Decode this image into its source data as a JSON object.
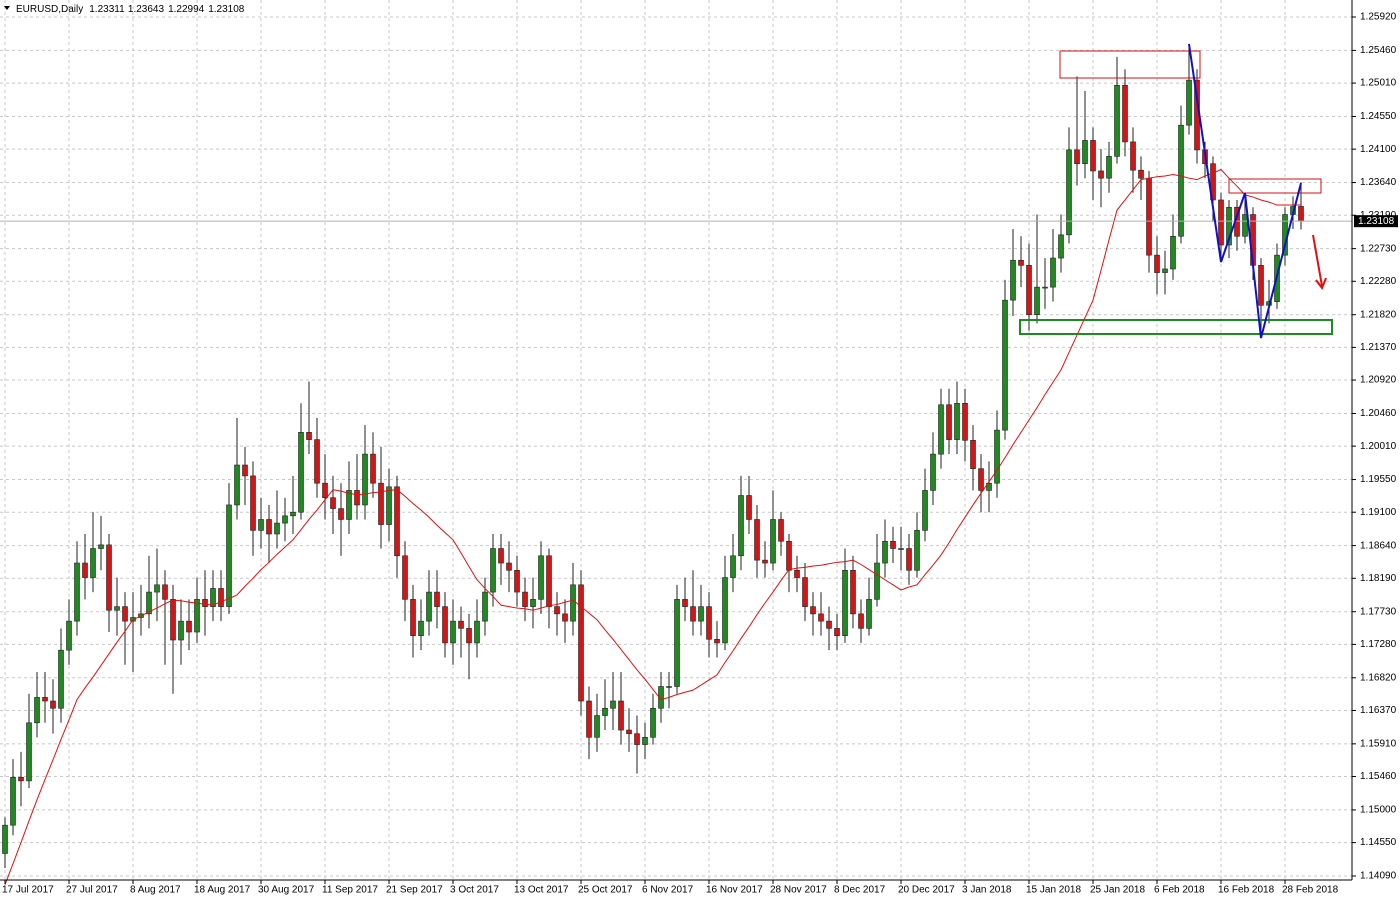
{
  "chart_data": {
    "type": "candlestick",
    "title": "EURUSD,Daily",
    "up_color": "#1f8a1f",
    "down_color": "#d41515",
    "ma_color": "#e01010",
    "grid": true,
    "ylim": [
      1.14035,
      1.26154
    ],
    "yticks": [
      {
        "value": 1.2592,
        "label": "1.25920"
      },
      {
        "value": 1.2546,
        "label": "1.25460"
      },
      {
        "value": 1.2501,
        "label": "1.25010"
      },
      {
        "value": 1.2455,
        "label": "1.24550"
      },
      {
        "value": 1.241,
        "label": "1.24100"
      },
      {
        "value": 1.2364,
        "label": "1.23640"
      },
      {
        "value": 1.2319,
        "label": "1.23190"
      },
      {
        "value": 1.2273,
        "label": "1.22730"
      },
      {
        "value": 1.2228,
        "label": "1.22280"
      },
      {
        "value": 1.2182,
        "label": "1.21820"
      },
      {
        "value": 1.2137,
        "label": "1.21370"
      },
      {
        "value": 1.2092,
        "label": "1.20920"
      },
      {
        "value": 1.2046,
        "label": "1.20460"
      },
      {
        "value": 1.2001,
        "label": "1.20010"
      },
      {
        "value": 1.1955,
        "label": "1.19550"
      },
      {
        "value": 1.191,
        "label": "1.19100"
      },
      {
        "value": 1.1864,
        "label": "1.18640"
      },
      {
        "value": 1.1819,
        "label": "1.18190"
      },
      {
        "value": 1.1773,
        "label": "1.17730"
      },
      {
        "value": 1.1728,
        "label": "1.17280"
      },
      {
        "value": 1.1682,
        "label": "1.16820"
      },
      {
        "value": 1.1637,
        "label": "1.16370"
      },
      {
        "value": 1.1591,
        "label": "1.15910"
      },
      {
        "value": 1.1546,
        "label": "1.15460"
      },
      {
        "value": 1.15,
        "label": "1.15000"
      },
      {
        "value": 1.1455,
        "label": "1.14550"
      },
      {
        "value": 1.1409,
        "label": "1.14090"
      }
    ],
    "categories": [
      "17 Jul 2017",
      null,
      null,
      null,
      null,
      null,
      null,
      null,
      "27 Jul 2017",
      null,
      null,
      null,
      null,
      null,
      null,
      null,
      "8 Aug 2017",
      null,
      null,
      null,
      null,
      null,
      null,
      null,
      "18 Aug 2017",
      null,
      null,
      null,
      null,
      null,
      null,
      null,
      "30 Aug 2017",
      null,
      null,
      null,
      null,
      null,
      null,
      null,
      "11 Sep 2017",
      null,
      null,
      null,
      null,
      null,
      null,
      null,
      "21 Sep 2017",
      null,
      null,
      null,
      null,
      null,
      null,
      null,
      "3 Oct 2017",
      null,
      null,
      null,
      null,
      null,
      null,
      null,
      "13 Oct 2017",
      null,
      null,
      null,
      null,
      null,
      null,
      null,
      "25 Oct 2017",
      null,
      null,
      null,
      null,
      null,
      null,
      null,
      "6 Nov 2017",
      null,
      null,
      null,
      null,
      null,
      null,
      null,
      "16 Nov 2017",
      null,
      null,
      null,
      null,
      null,
      null,
      null,
      "28 Nov 2017",
      null,
      null,
      null,
      null,
      null,
      null,
      null,
      "8 Dec 2017",
      null,
      null,
      null,
      null,
      null,
      null,
      null,
      "20 Dec 2017",
      null,
      null,
      null,
      null,
      null,
      null,
      null,
      "3 Jan 2018",
      null,
      null,
      null,
      null,
      null,
      null,
      null,
      "15 Jan 2018",
      null,
      null,
      null,
      null,
      null,
      null,
      null,
      "25 Jan 2018",
      null,
      null,
      null,
      null,
      null,
      null,
      null,
      "6 Feb 2018",
      null,
      null,
      null,
      null,
      null,
      null,
      null,
      "16 Feb 2018",
      null,
      null,
      null,
      null,
      null,
      null,
      null,
      "28 Feb 2018",
      null,
      null
    ],
    "candles": [
      [
        1.144,
        1.149,
        1.142,
        1.1479
      ],
      [
        1.1479,
        1.157,
        1.1465,
        1.1545
      ],
      [
        1.1545,
        1.158,
        1.1505,
        1.154
      ],
      [
        1.154,
        1.166,
        1.153,
        1.162
      ],
      [
        1.162,
        1.169,
        1.16,
        1.1655
      ],
      [
        1.1655,
        1.169,
        1.162,
        1.165
      ],
      [
        1.165,
        1.168,
        1.1605,
        1.164
      ],
      [
        1.164,
        1.175,
        1.162,
        1.172
      ],
      [
        1.172,
        1.179,
        1.17,
        1.176
      ],
      [
        1.176,
        1.187,
        1.174,
        1.184
      ],
      [
        1.184,
        1.188,
        1.179,
        1.182
      ],
      [
        1.182,
        1.191,
        1.18,
        1.186
      ],
      [
        1.186,
        1.1905,
        1.183,
        1.1865
      ],
      [
        1.1865,
        1.188,
        1.1745,
        1.1775
      ],
      [
        1.1775,
        1.182,
        1.174,
        1.178
      ],
      [
        1.178,
        1.18,
        1.17,
        1.176
      ],
      [
        1.176,
        1.18,
        1.169,
        1.1765
      ],
      [
        1.1765,
        1.181,
        1.174,
        1.177
      ],
      [
        1.177,
        1.185,
        1.175,
        1.18
      ],
      [
        1.18,
        1.186,
        1.176,
        1.181
      ],
      [
        1.181,
        1.183,
        1.17,
        1.179
      ],
      [
        1.179,
        1.181,
        1.166,
        1.1734
      ],
      [
        1.1734,
        1.179,
        1.17,
        1.176
      ],
      [
        1.176,
        1.179,
        1.172,
        1.1745
      ],
      [
        1.1745,
        1.182,
        1.173,
        1.179
      ],
      [
        1.179,
        1.183,
        1.174,
        1.178
      ],
      [
        1.178,
        1.183,
        1.176,
        1.1805
      ],
      [
        1.1805,
        1.183,
        1.176,
        1.178
      ],
      [
        1.178,
        1.195,
        1.177,
        1.192
      ],
      [
        1.192,
        1.204,
        1.19,
        1.1975
      ],
      [
        1.1975,
        1.2,
        1.192,
        1.196
      ],
      [
        1.196,
        1.198,
        1.185,
        1.1885
      ],
      [
        1.1885,
        1.193,
        1.186,
        1.19
      ],
      [
        1.19,
        1.192,
        1.184,
        1.188
      ],
      [
        1.188,
        1.194,
        1.186,
        1.1895
      ],
      [
        1.1895,
        1.193,
        1.187,
        1.1905
      ],
      [
        1.1905,
        1.196,
        1.188,
        1.191
      ],
      [
        1.191,
        1.206,
        1.19,
        1.202
      ],
      [
        1.202,
        1.209,
        1.199,
        1.201
      ],
      [
        1.201,
        1.204,
        1.193,
        1.195
      ],
      [
        1.195,
        1.199,
        1.19,
        1.193
      ],
      [
        1.193,
        1.196,
        1.188,
        1.1915
      ],
      [
        1.1915,
        1.195,
        1.185,
        1.19
      ],
      [
        1.19,
        1.198,
        1.188,
        1.194
      ],
      [
        1.194,
        1.199,
        1.19,
        1.192
      ],
      [
        1.192,
        1.203,
        1.19,
        1.199
      ],
      [
        1.199,
        1.202,
        1.193,
        1.195
      ],
      [
        1.195,
        1.2,
        1.186,
        1.1893
      ],
      [
        1.1893,
        1.197,
        1.187,
        1.1945
      ],
      [
        1.1945,
        1.196,
        1.182,
        1.185
      ],
      [
        1.185,
        1.187,
        1.176,
        1.179
      ],
      [
        1.179,
        1.181,
        1.171,
        1.174
      ],
      [
        1.174,
        1.179,
        1.172,
        1.176
      ],
      [
        1.176,
        1.183,
        1.174,
        1.18
      ],
      [
        1.18,
        1.183,
        1.175,
        1.178
      ],
      [
        1.178,
        1.18,
        1.171,
        1.173
      ],
      [
        1.173,
        1.179,
        1.17,
        1.176
      ],
      [
        1.176,
        1.178,
        1.171,
        1.175
      ],
      [
        1.175,
        1.177,
        1.168,
        1.173
      ],
      [
        1.173,
        1.179,
        1.171,
        1.176
      ],
      [
        1.176,
        1.182,
        1.174,
        1.18
      ],
      [
        1.18,
        1.188,
        1.178,
        1.186
      ],
      [
        1.186,
        1.188,
        1.181,
        1.184
      ],
      [
        1.184,
        1.187,
        1.18,
        1.183
      ],
      [
        1.183,
        1.185,
        1.178,
        1.18
      ],
      [
        1.18,
        1.182,
        1.176,
        1.178
      ],
      [
        1.178,
        1.182,
        1.175,
        1.179
      ],
      [
        1.179,
        1.187,
        1.177,
        1.185
      ],
      [
        1.185,
        1.186,
        1.175,
        1.178
      ],
      [
        1.178,
        1.18,
        1.174,
        1.177
      ],
      [
        1.177,
        1.179,
        1.173,
        1.176
      ],
      [
        1.176,
        1.184,
        1.174,
        1.181
      ],
      [
        1.181,
        1.183,
        1.163,
        1.165
      ],
      [
        1.165,
        1.167,
        1.157,
        1.16
      ],
      [
        1.16,
        1.166,
        1.158,
        1.163
      ],
      [
        1.163,
        1.168,
        1.161,
        1.164
      ],
      [
        1.164,
        1.169,
        1.161,
        1.165
      ],
      [
        1.165,
        1.169,
        1.159,
        1.161
      ],
      [
        1.161,
        1.164,
        1.158,
        1.1605
      ],
      [
        1.1605,
        1.163,
        1.155,
        1.159
      ],
      [
        1.159,
        1.162,
        1.157,
        1.16
      ],
      [
        1.16,
        1.166,
        1.159,
        1.164
      ],
      [
        1.164,
        1.169,
        1.162,
        1.167
      ],
      [
        1.167,
        1.169,
        1.164,
        1.167
      ],
      [
        1.167,
        1.181,
        1.166,
        1.179
      ],
      [
        1.179,
        1.182,
        1.176,
        1.178
      ],
      [
        1.178,
        1.183,
        1.174,
        1.176
      ],
      [
        1.176,
        1.181,
        1.174,
        1.178
      ],
      [
        1.178,
        1.18,
        1.171,
        1.1735
      ],
      [
        1.1735,
        1.176,
        1.171,
        1.173
      ],
      [
        1.173,
        1.185,
        1.172,
        1.182
      ],
      [
        1.182,
        1.188,
        1.18,
        1.185
      ],
      [
        1.185,
        1.196,
        1.183,
        1.1933
      ],
      [
        1.1933,
        1.196,
        1.188,
        1.19
      ],
      [
        1.19,
        1.192,
        1.182,
        1.1844
      ],
      [
        1.1844,
        1.187,
        1.182,
        1.184
      ],
      [
        1.184,
        1.194,
        1.183,
        1.19
      ],
      [
        1.19,
        1.191,
        1.185,
        1.187
      ],
      [
        1.187,
        1.188,
        1.18,
        1.183
      ],
      [
        1.183,
        1.185,
        1.18,
        1.182
      ],
      [
        1.182,
        1.184,
        1.176,
        1.178
      ],
      [
        1.178,
        1.18,
        1.174,
        1.177
      ],
      [
        1.177,
        1.18,
        1.174,
        1.176
      ],
      [
        1.176,
        1.178,
        1.172,
        1.175
      ],
      [
        1.175,
        1.177,
        1.172,
        1.174
      ],
      [
        1.174,
        1.186,
        1.173,
        1.183
      ],
      [
        1.183,
        1.185,
        1.175,
        1.177
      ],
      [
        1.177,
        1.179,
        1.173,
        1.175
      ],
      [
        1.175,
        1.182,
        1.174,
        1.179
      ],
      [
        1.179,
        1.188,
        1.178,
        1.184
      ],
      [
        1.184,
        1.19,
        1.182,
        1.187
      ],
      [
        1.187,
        1.189,
        1.184,
        1.186
      ],
      [
        1.186,
        1.189,
        1.183,
        1.186
      ],
      [
        1.186,
        1.188,
        1.181,
        1.183
      ],
      [
        1.183,
        1.191,
        1.182,
        1.1885
      ],
      [
        1.1885,
        1.197,
        1.187,
        1.194
      ],
      [
        1.194,
        1.202,
        1.192,
        1.199
      ],
      [
        1.199,
        1.208,
        1.197,
        1.2058
      ],
      [
        1.2058,
        1.208,
        1.199,
        1.201
      ],
      [
        1.201,
        1.209,
        1.199,
        1.206
      ],
      [
        1.206,
        1.208,
        1.198,
        1.2009
      ],
      [
        1.2009,
        1.203,
        1.194,
        1.197
      ],
      [
        1.197,
        1.199,
        1.191,
        1.194
      ],
      [
        1.194,
        1.198,
        1.191,
        1.195
      ],
      [
        1.195,
        1.205,
        1.193,
        1.2023
      ],
      [
        1.2023,
        1.223,
        1.201,
        1.2202
      ],
      [
        1.2202,
        1.23,
        1.218,
        1.2257
      ],
      [
        1.2257,
        1.229,
        1.222,
        1.225
      ],
      [
        1.225,
        1.228,
        1.216,
        1.2182
      ],
      [
        1.2182,
        1.232,
        1.217,
        1.222
      ],
      [
        1.222,
        1.226,
        1.219,
        1.222
      ],
      [
        1.222,
        1.23,
        1.22,
        1.226
      ],
      [
        1.226,
        1.232,
        1.224,
        1.2292
      ],
      [
        1.2292,
        1.244,
        1.228,
        1.2409
      ],
      [
        1.2409,
        1.251,
        1.236,
        1.239
      ],
      [
        1.239,
        1.249,
        1.237,
        1.2422
      ],
      [
        1.2422,
        1.244,
        1.234,
        1.238
      ],
      [
        1.238,
        1.241,
        1.233,
        1.237
      ],
      [
        1.237,
        1.242,
        1.235,
        1.24
      ],
      [
        1.24,
        1.2537,
        1.239,
        1.2498
      ],
      [
        1.2498,
        1.252,
        1.24,
        1.242
      ],
      [
        1.242,
        1.244,
        1.235,
        1.2381
      ],
      [
        1.2381,
        1.24,
        1.234,
        1.237
      ],
      [
        1.237,
        1.238,
        1.224,
        1.2264
      ],
      [
        1.2264,
        1.229,
        1.221,
        1.224
      ],
      [
        1.224,
        1.227,
        1.221,
        1.2245
      ],
      [
        1.2245,
        1.232,
        1.223,
        1.229
      ],
      [
        1.229,
        1.247,
        1.228,
        1.2443
      ],
      [
        1.2443,
        1.2555,
        1.243,
        1.2505
      ],
      [
        1.2505,
        1.252,
        1.239,
        1.2409
      ],
      [
        1.2409,
        1.242,
        1.237,
        1.239
      ],
      [
        1.239,
        1.24,
        1.231,
        1.234
      ],
      [
        1.234,
        1.235,
        1.2255,
        1.2278
      ],
      [
        1.2278,
        1.234,
        1.226,
        1.233
      ],
      [
        1.233,
        1.234,
        1.227,
        1.229
      ],
      [
        1.229,
        1.235,
        1.228,
        1.232
      ],
      [
        1.232,
        1.233,
        1.223,
        1.225
      ],
      [
        1.225,
        1.226,
        1.215,
        1.2195
      ],
      [
        1.2195,
        1.223,
        1.217,
        1.22
      ],
      [
        1.22,
        1.228,
        1.219,
        1.2264
      ],
      [
        1.2264,
        1.233,
        1.225,
        1.232
      ],
      [
        1.232,
        1.2345,
        1.23,
        1.2331
      ],
      [
        1.23311,
        1.23643,
        1.22994,
        1.23108
      ]
    ],
    "ma_values": [
      1.1397,
      1.1426,
      1.1455,
      1.1485,
      1.1514,
      1.1542,
      1.1569,
      1.1597,
      1.1624,
      1.1652,
      1.1668,
      1.1683,
      1.1699,
      1.1715,
      1.1731,
      1.1746,
      1.1762,
      1.1767,
      1.1773,
      1.1778,
      1.1784,
      1.1789,
      1.1788,
      1.1786,
      1.1785,
      1.1783,
      1.1782,
      1.1787,
      1.1791,
      1.1796,
      1.1808,
      1.1819,
      1.1831,
      1.1841,
      1.1852,
      1.1862,
      1.1872,
      1.1886,
      1.19,
      1.1913,
      1.1927,
      1.1941,
      1.1939,
      1.1936,
      1.1934,
      1.1935,
      1.1937,
      1.1938,
      1.194,
      1.1941,
      1.1932,
      1.1922,
      1.1913,
      1.1903,
      1.1892,
      1.1882,
      1.1872,
      1.1854,
      1.1835,
      1.1817,
      1.1805,
      1.1794,
      1.1782,
      1.178,
      1.1778,
      1.1777,
      1.1775,
      1.1778,
      1.1781,
      1.1783,
      1.1786,
      1.1789,
      1.178,
      1.1771,
      1.1762,
      1.1748,
      1.1735,
      1.1721,
      1.1707,
      1.1693,
      1.168,
      1.1666,
      1.1652,
      1.1655,
      1.1659,
      1.1662,
      1.1665,
      1.1672,
      1.1679,
      1.1686,
      1.1703,
      1.1719,
      1.1736,
      1.1752,
      1.1769,
      1.1785,
      1.18,
      1.1816,
      1.1831,
      1.1833,
      1.1834,
      1.1836,
      1.1837,
      1.1839,
      1.1841,
      1.1842,
      1.1844,
      1.1838,
      1.1831,
      1.1824,
      1.1817,
      1.181,
      1.1803,
      1.1807,
      1.181,
      1.1824,
      1.1837,
      1.1851,
      1.1868,
      1.1886,
      1.1903,
      1.192,
      1.1936,
      1.1952,
      1.1968,
      1.1985,
      1.2003,
      1.202,
      1.2037,
      1.2054,
      1.2072,
      1.2089,
      1.2106,
      1.213,
      1.2154,
      1.2178,
      1.2202,
      1.2243,
      1.2285,
      1.2326,
      1.234,
      1.2354,
      1.2368,
      1.237,
      1.2372,
      1.2373,
      1.2375,
      1.2373,
      1.237,
      1.2368,
      1.2373,
      1.2377,
      1.2382,
      1.237,
      1.2359,
      1.2347,
      1.2344,
      1.234,
      1.2337,
      1.2333,
      1.2333,
      1.2333,
      1.2333
    ]
  }
}
